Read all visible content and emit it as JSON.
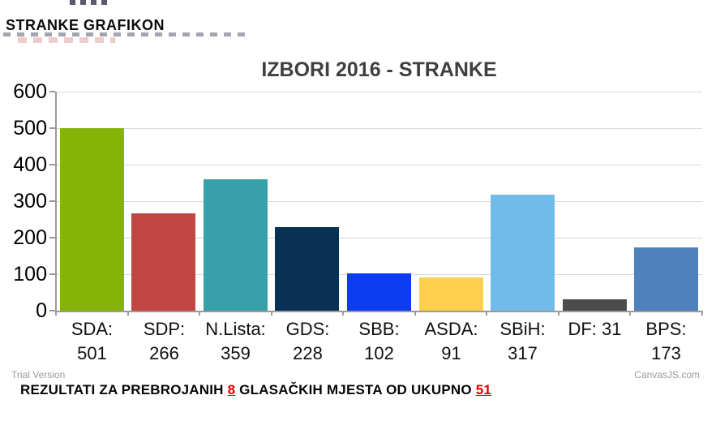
{
  "page": {
    "header_title": "STRANKE GRAFIKON"
  },
  "footer": {
    "trial_label": "Trial Version",
    "brand_label": "CanvasJS.com",
    "results": {
      "prefix": "REZULTATI ZA PREBROJANIH ",
      "counted": "8",
      "middle": " GLASAČKIH MJESTA OD UKUPNO ",
      "total": "51"
    }
  },
  "chart_data": {
    "type": "bar",
    "title": "IZBORI 2016 - STRANKE",
    "categories": [
      "SDA",
      "SDP",
      "N.Lista",
      "GDS",
      "SBB",
      "ASDA",
      "SBiH",
      "DF",
      "BPS"
    ],
    "values": [
      501,
      266,
      359,
      228,
      102,
      91,
      317,
      31,
      173
    ],
    "axis_label_lines": [
      [
        "SDA:",
        "501"
      ],
      [
        "SDP:",
        "266"
      ],
      [
        "N.Lista:",
        "359"
      ],
      [
        "GDS:",
        "228"
      ],
      [
        "SBB:",
        "102"
      ],
      [
        "ASDA:",
        "91"
      ],
      [
        "SBiH:",
        "317"
      ],
      [
        "DF: 31"
      ],
      [
        "BPS:",
        "173"
      ]
    ],
    "bar_colors": [
      "#84B408",
      "#C24742",
      "#38A0A8",
      "#083153",
      "#0B3CF0",
      "#FCD04C",
      "#70BBE8",
      "#4C4C4C",
      "#4F81BC"
    ],
    "ylim": [
      0,
      600
    ],
    "yticks": [
      0,
      100,
      200,
      300,
      400,
      500,
      600
    ],
    "xlabel": "",
    "ylabel": "",
    "grid": true,
    "legend": "none",
    "title_color": "#3f3f3f",
    "gridline_color": "#d9d9d9",
    "axis_color": "#9a9a9a"
  }
}
